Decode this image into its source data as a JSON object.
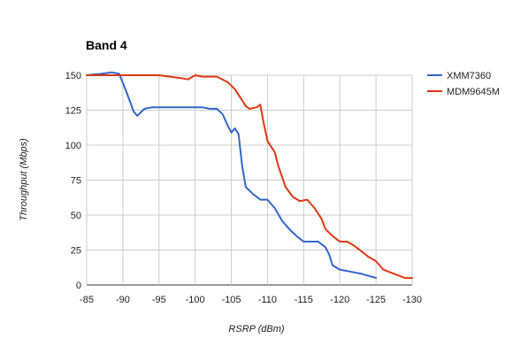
{
  "chart_data": {
    "type": "line",
    "title": "Band 4",
    "xlabel": "RSRP (dBm)",
    "ylabel": "Throughput (Mbps)",
    "xlim": [
      -85,
      -130
    ],
    "ylim": [
      0,
      150
    ],
    "x_ticks": [
      -85,
      -90,
      -95,
      -100,
      -105,
      -110,
      -115,
      -120,
      -125,
      -130
    ],
    "y_ticks": [
      0,
      25,
      50,
      75,
      100,
      125,
      150
    ],
    "grid": true,
    "legend": "right",
    "series": [
      {
        "name": "XMM7360",
        "color": "#3366cc",
        "points": [
          [
            -85,
            150
          ],
          [
            -87,
            151
          ],
          [
            -88.5,
            152
          ],
          [
            -89.5,
            151
          ],
          [
            -90.5,
            138
          ],
          [
            -91.5,
            124
          ],
          [
            -92,
            121
          ],
          [
            -93,
            126
          ],
          [
            -94,
            127
          ],
          [
            -96,
            127
          ],
          [
            -98,
            127
          ],
          [
            -100,
            127
          ],
          [
            -101,
            127
          ],
          [
            -102,
            126
          ],
          [
            -103,
            126
          ],
          [
            -103.8,
            122
          ],
          [
            -104.5,
            114
          ],
          [
            -105,
            109
          ],
          [
            -105.5,
            112
          ],
          [
            -106,
            108
          ],
          [
            -106.5,
            85
          ],
          [
            -107,
            70
          ],
          [
            -108,
            65
          ],
          [
            -109,
            61
          ],
          [
            -110,
            61
          ],
          [
            -111,
            55
          ],
          [
            -112,
            46
          ],
          [
            -113,
            40
          ],
          [
            -114,
            35
          ],
          [
            -115,
            31
          ],
          [
            -116,
            31
          ],
          [
            -117,
            31
          ],
          [
            -118,
            27
          ],
          [
            -118.5,
            22
          ],
          [
            -119,
            14
          ],
          [
            -120,
            11
          ],
          [
            -122,
            9
          ],
          [
            -123,
            8
          ],
          [
            -125,
            5
          ]
        ]
      },
      {
        "name": "MDM9645M",
        "color": "#dc3912",
        "points": [
          [
            -85,
            150
          ],
          [
            -90,
            150
          ],
          [
            -95,
            150
          ],
          [
            -98,
            148
          ],
          [
            -99,
            147
          ],
          [
            -100,
            150
          ],
          [
            -101,
            149
          ],
          [
            -103,
            149
          ],
          [
            -104.5,
            145
          ],
          [
            -105.5,
            140
          ],
          [
            -106.5,
            132
          ],
          [
            -107,
            128
          ],
          [
            -107.5,
            126
          ],
          [
            -108.5,
            127
          ],
          [
            -109,
            129
          ],
          [
            -109.5,
            115
          ],
          [
            -110,
            103
          ],
          [
            -111,
            95
          ],
          [
            -111.5,
            85
          ],
          [
            -112.5,
            70
          ],
          [
            -113.5,
            63
          ],
          [
            -114.5,
            60
          ],
          [
            -115.5,
            61
          ],
          [
            -116.5,
            55
          ],
          [
            -117.5,
            47
          ],
          [
            -118,
            40
          ],
          [
            -119,
            35
          ],
          [
            -120,
            31
          ],
          [
            -121,
            31
          ],
          [
            -122,
            28
          ],
          [
            -123,
            24
          ],
          [
            -124,
            20
          ],
          [
            -125,
            17
          ],
          [
            -126,
            11
          ],
          [
            -127,
            9
          ],
          [
            -128,
            7
          ],
          [
            -129,
            5
          ],
          [
            -130,
            5
          ]
        ]
      }
    ]
  }
}
